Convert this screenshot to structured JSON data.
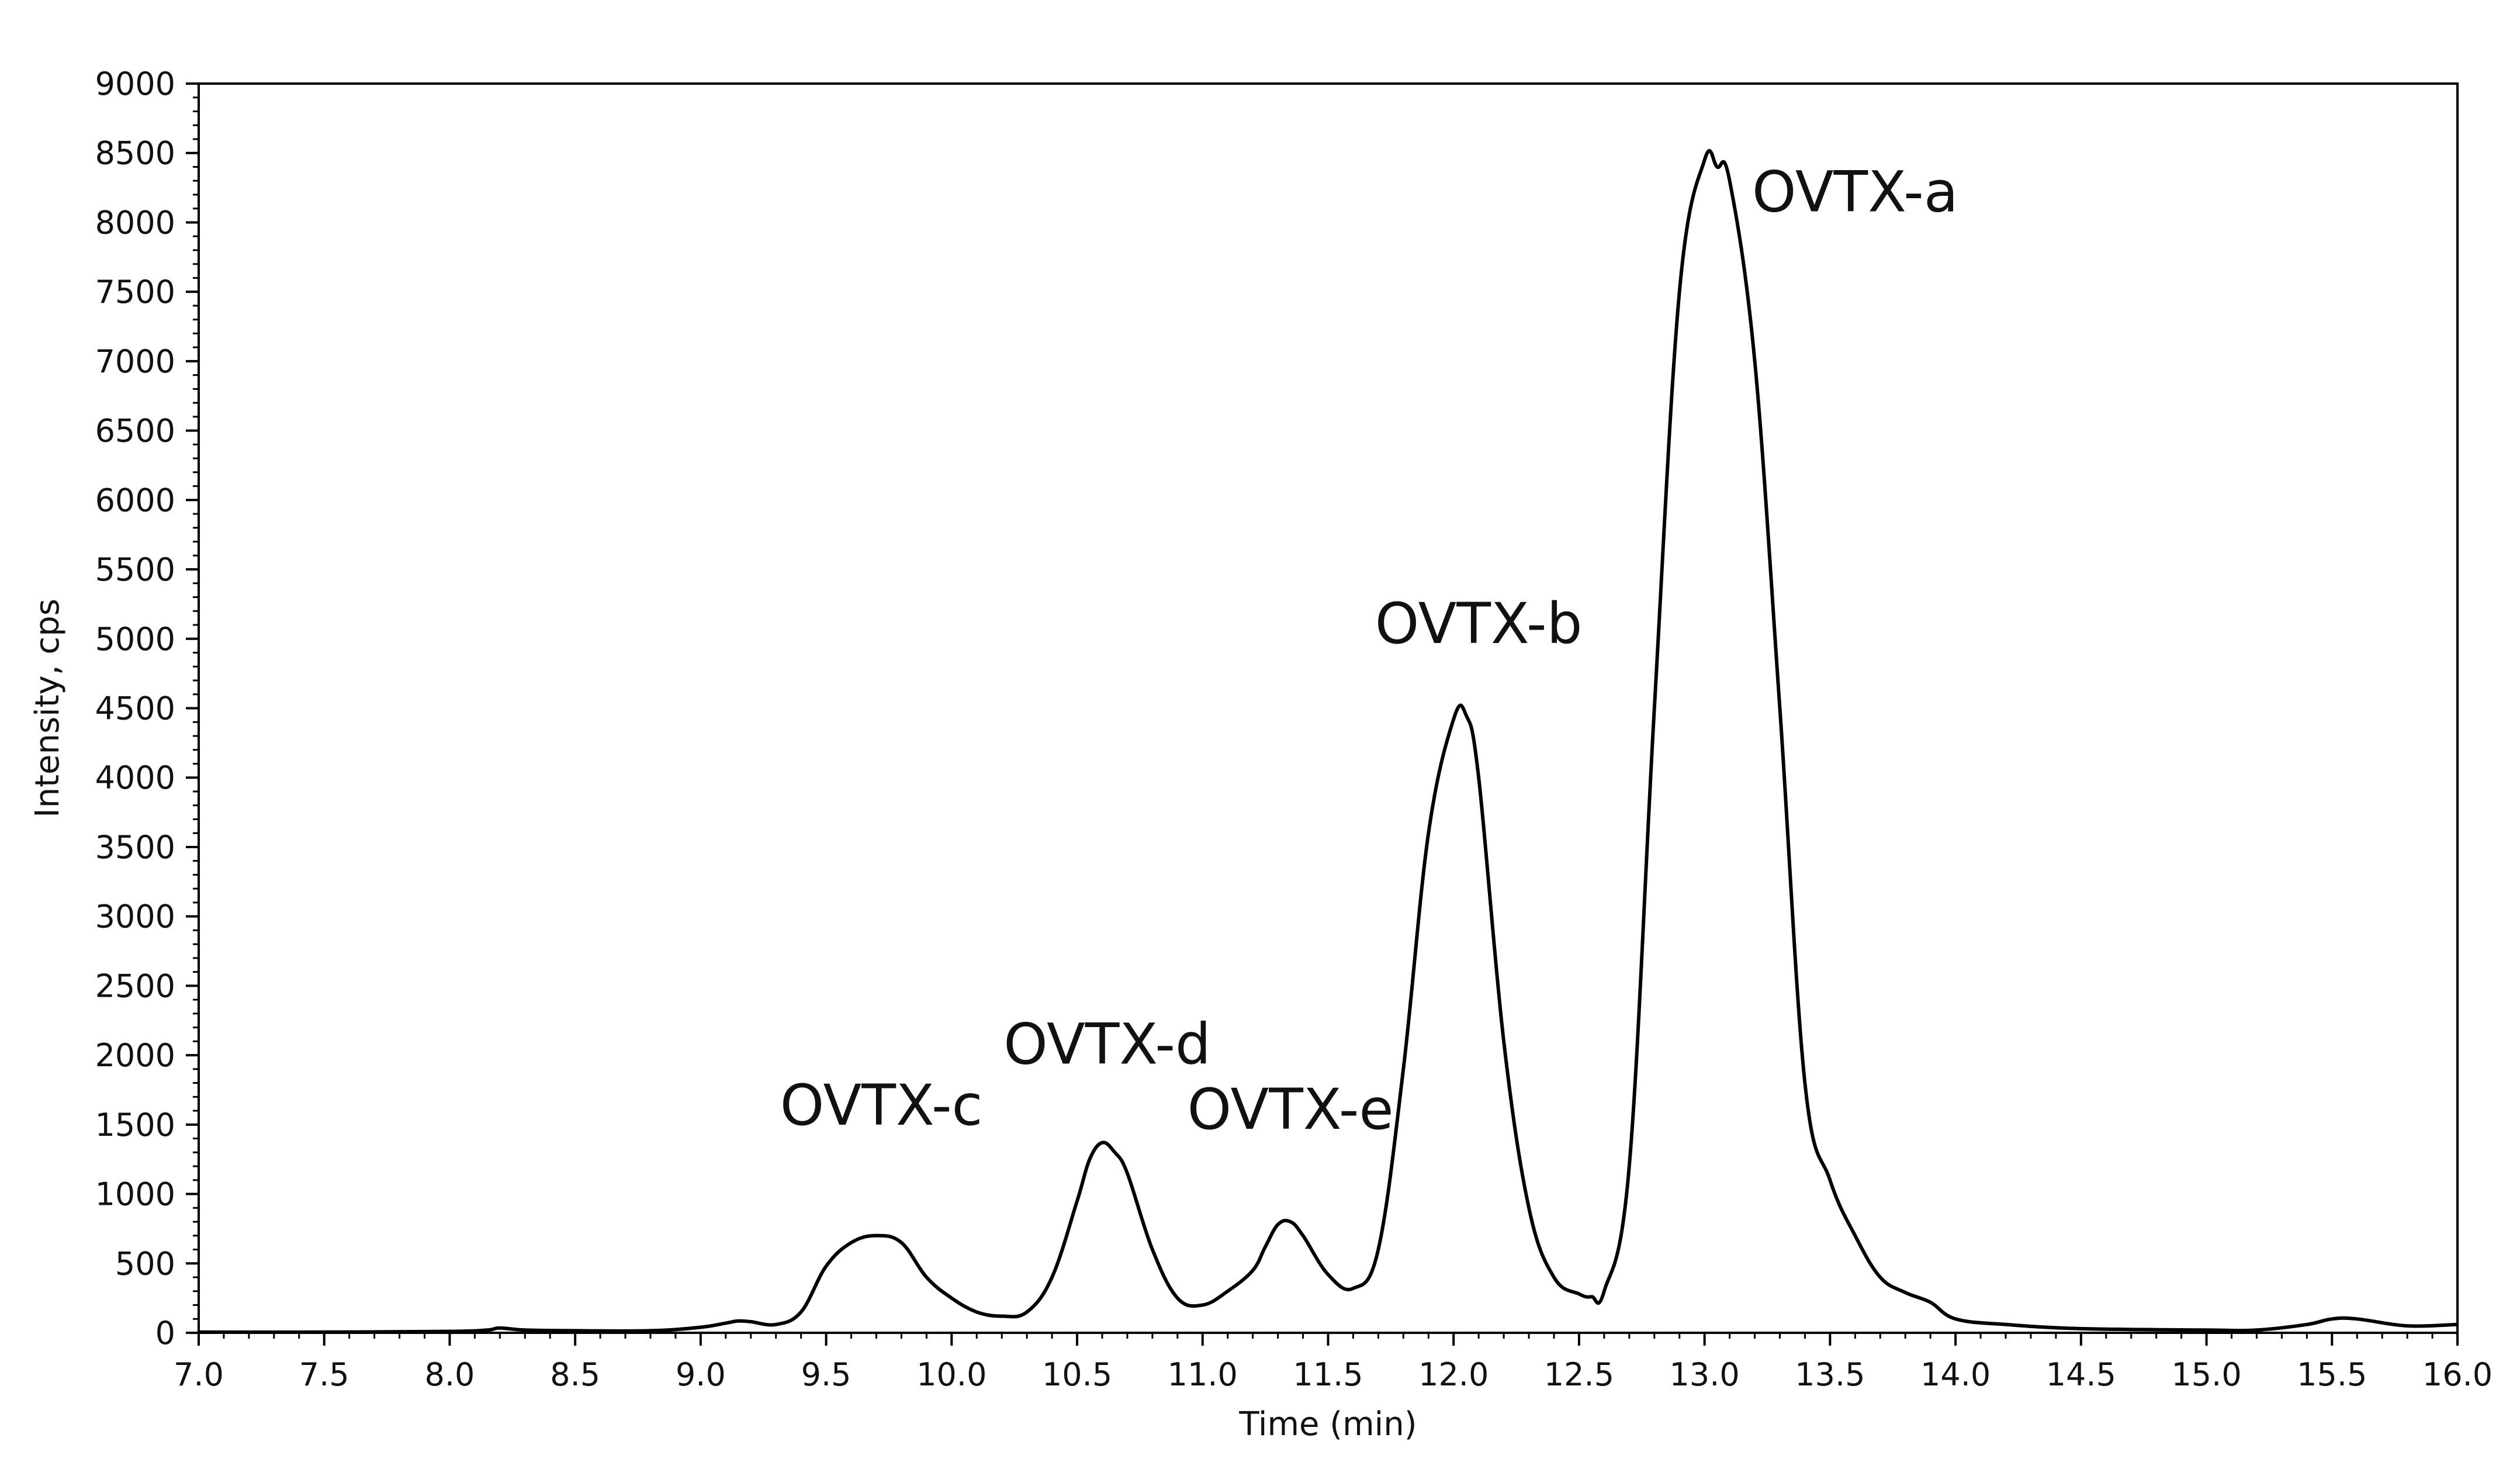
{
  "chart_data": {
    "type": "line",
    "title": "",
    "xlabel": "Time (min)",
    "ylabel": "Intensity, cps",
    "xlim": [
      7.0,
      16.0
    ],
    "ylim": [
      0,
      9000
    ],
    "x_ticks": [
      "7.0",
      "7.5",
      "8.0",
      "8.5",
      "9.0",
      "9.5",
      "10.0",
      "10.5",
      "11.0",
      "11.5",
      "12.0",
      "12.5",
      "13.0",
      "13.5",
      "14.0",
      "14.5",
      "15.0",
      "15.5",
      "16.0"
    ],
    "y_ticks": [
      "0",
      "500",
      "1000",
      "1500",
      "2000",
      "2500",
      "3000",
      "3500",
      "4000",
      "4500",
      "5000",
      "5500",
      "6000",
      "6500",
      "7000",
      "7500",
      "8000",
      "8500",
      "9000"
    ],
    "grid": false,
    "line_color": "#000000",
    "series": [
      {
        "x": [
          7.0,
          7.5,
          8.0,
          8.15,
          8.2,
          8.3,
          8.5,
          8.8,
          9.0,
          9.1,
          9.15,
          9.2,
          9.3,
          9.4,
          9.5,
          9.6,
          9.7,
          9.8,
          9.9,
          10.0,
          10.1,
          10.2,
          10.3,
          10.4,
          10.5,
          10.55,
          10.6,
          10.65,
          10.7,
          10.8,
          10.9,
          11.0,
          11.1,
          11.2,
          11.25,
          11.3,
          11.35,
          11.4,
          11.5,
          11.6,
          11.7,
          11.8,
          11.9,
          12.0,
          12.05,
          12.1,
          12.2,
          12.3,
          12.4,
          12.5,
          12.55,
          12.6,
          12.7,
          12.8,
          12.9,
          13.0,
          13.05,
          13.1,
          13.2,
          13.3,
          13.4,
          13.5,
          13.6,
          13.7,
          13.8,
          13.9,
          14.0,
          14.2,
          14.5,
          15.0,
          15.2,
          15.4,
          15.5,
          15.6,
          15.8,
          16.0
        ],
        "y": [
          5,
          5,
          10,
          20,
          35,
          20,
          15,
          15,
          40,
          70,
          85,
          80,
          60,
          150,
          480,
          650,
          700,
          650,
          400,
          250,
          150,
          120,
          150,
          400,
          950,
          1250,
          1370,
          1300,
          1150,
          600,
          250,
          200,
          300,
          450,
          620,
          780,
          800,
          700,
          420,
          320,
          600,
          1900,
          3600,
          4420,
          4450,
          4000,
          2100,
          900,
          400,
          280,
          260,
          300,
          1200,
          4500,
          7500,
          8450,
          8400,
          8300,
          7000,
          4500,
          1800,
          1100,
          700,
          400,
          290,
          220,
          100,
          60,
          30,
          20,
          20,
          60,
          100,
          100,
          50,
          60
        ]
      }
    ],
    "annotations": [
      {
        "text": "OVTX-c",
        "x": 9.72,
        "y": 1500
      },
      {
        "text": "OVTX-d",
        "x": 10.62,
        "y": 1940
      },
      {
        "text": "OVTX-e",
        "x": 11.35,
        "y": 1470
      },
      {
        "text": "OVTX-b",
        "x": 12.1,
        "y": 4970
      },
      {
        "text": "OVTX-a",
        "x": 13.6,
        "y": 8080
      }
    ]
  }
}
